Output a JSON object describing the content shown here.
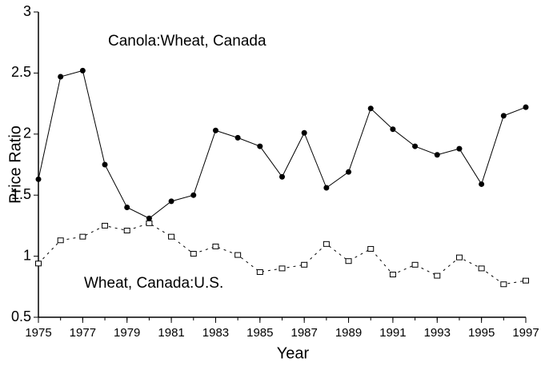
{
  "chart_data": {
    "type": "line",
    "x_label": "Year",
    "y_label": "Price Ratio",
    "annotations": [
      "Canola:Wheat, Canada",
      "Wheat, Canada:U.S."
    ],
    "x": [
      1975,
      1976,
      1977,
      1978,
      1979,
      1980,
      1981,
      1982,
      1983,
      1984,
      1985,
      1986,
      1987,
      1988,
      1989,
      1990,
      1991,
      1992,
      1993,
      1994,
      1995,
      1996,
      1997
    ],
    "series": [
      {
        "name": "Canola:Wheat, Canada",
        "color": "#000000",
        "marker": "circle",
        "line_style": "solid",
        "values": [
          1.63,
          2.47,
          2.52,
          1.75,
          1.4,
          1.31,
          1.45,
          1.5,
          2.03,
          1.97,
          1.9,
          1.65,
          2.01,
          1.56,
          1.69,
          2.21,
          2.04,
          1.9,
          1.83,
          1.88,
          1.59,
          2.15,
          2.22
        ]
      },
      {
        "name": "Wheat, Canada:U.S.",
        "color": "#000000",
        "marker": "square",
        "line_style": "dashed",
        "values": [
          0.94,
          1.13,
          1.16,
          1.25,
          1.21,
          1.27,
          1.16,
          1.02,
          1.08,
          1.01,
          0.87,
          0.9,
          0.93,
          1.1,
          0.96,
          1.06,
          0.85,
          0.93,
          0.84,
          0.99,
          0.9,
          0.77,
          0.8
        ]
      }
    ],
    "xlim": [
      1975,
      1997
    ],
    "xticks": [
      1975,
      1977,
      1979,
      1981,
      1983,
      1985,
      1987,
      1989,
      1991,
      1993,
      1995,
      1997
    ],
    "ylim": [
      0.5,
      3
    ],
    "yticks": [
      0.5,
      1,
      1.5,
      2,
      2.5,
      3
    ]
  }
}
